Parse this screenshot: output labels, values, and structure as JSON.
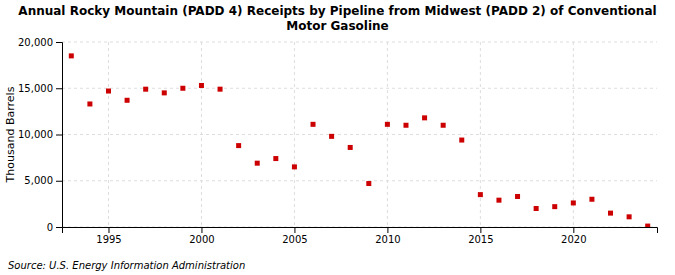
{
  "chart_data": {
    "type": "scatter",
    "title": "Annual Rocky Mountain (PADD 4) Receipts by Pipeline from Midwest (PADD 2) of Conventional\nMotor Gasoline",
    "ylabel": "Thousand Barrels",
    "source": "Source: U.S. Energy Information Administration",
    "x": [
      1993,
      1994,
      1995,
      1996,
      1997,
      1998,
      1999,
      2000,
      2001,
      2002,
      2003,
      2004,
      2005,
      2006,
      2007,
      2008,
      2009,
      2010,
      2011,
      2012,
      2013,
      2014,
      2015,
      2016,
      2017,
      2018,
      2019,
      2020,
      2021,
      2022,
      2023,
      2024
    ],
    "values": [
      18500,
      13300,
      14700,
      13700,
      14900,
      14500,
      15000,
      15300,
      14900,
      8800,
      6900,
      7400,
      6500,
      11100,
      9800,
      8600,
      4700,
      11100,
      11000,
      11800,
      11000,
      9400,
      3500,
      2900,
      3300,
      2000,
      2200,
      2600,
      3000,
      1500,
      1100,
      100
    ],
    "color": "#cc0000",
    "marker": "square",
    "xlim": [
      1992.5,
      2024.5
    ],
    "xticks": [
      1995,
      2000,
      2005,
      2010,
      2015,
      2020
    ],
    "ylim": [
      0,
      20000
    ],
    "yticks": [
      0,
      {
        "value": 5000,
        "label": "5,000"
      },
      {
        "value": 10000,
        "label": "10,000"
      },
      {
        "value": 15000,
        "label": "15,000"
      },
      {
        "value": 20000,
        "label": "20,000"
      }
    ],
    "grid": true
  }
}
